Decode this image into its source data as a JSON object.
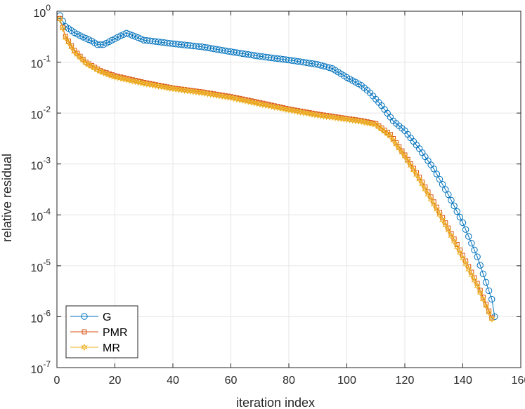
{
  "chart_data": {
    "type": "line",
    "title": "",
    "xlabel": "iteration index",
    "ylabel": "relative residual",
    "xlim": [
      0,
      160
    ],
    "ylim_log10": [
      -7,
      0
    ],
    "yscale": "log",
    "grid": true,
    "legend_position": "bottom-left",
    "x_ticks": [
      0,
      20,
      40,
      60,
      80,
      100,
      120,
      140,
      160
    ],
    "x_tick_labels": [
      "0",
      "20",
      "40",
      "60",
      "80",
      "100",
      "120",
      "140",
      "160"
    ],
    "y_tick_exponents": [
      0,
      -1,
      -2,
      -3,
      -4,
      -5,
      -6,
      -7
    ],
    "y_tick_base": "10",
    "y_tick_exps": [
      "0",
      "-1",
      "-2",
      "-3",
      "-4",
      "-5",
      "-6",
      "-7"
    ],
    "series": [
      {
        "name": "G",
        "color": "#0072BD",
        "marker": "circle",
        "n": 151,
        "keypoints": [
          [
            1,
            0.82
          ],
          [
            3,
            0.5
          ],
          [
            6,
            0.38
          ],
          [
            9,
            0.31
          ],
          [
            12,
            0.26
          ],
          [
            14,
            0.22
          ],
          [
            16,
            0.22
          ],
          [
            19,
            0.27
          ],
          [
            22,
            0.33
          ],
          [
            24,
            0.37
          ],
          [
            27,
            0.32
          ],
          [
            30,
            0.27
          ],
          [
            35,
            0.25
          ],
          [
            40,
            0.23
          ],
          [
            50,
            0.2
          ],
          [
            60,
            0.16
          ],
          [
            70,
            0.13
          ],
          [
            80,
            0.11
          ],
          [
            90,
            0.09
          ],
          [
            95,
            0.075
          ],
          [
            100,
            0.05
          ],
          [
            105,
            0.035
          ],
          [
            108,
            0.025
          ],
          [
            112,
            0.014
          ],
          [
            116,
            0.007
          ],
          [
            120,
            0.0045
          ],
          [
            125,
            0.002
          ],
          [
            130,
            0.0008
          ],
          [
            135,
            0.00025
          ],
          [
            140,
            7e-05
          ],
          [
            145,
            1.5e-05
          ],
          [
            150,
            2.2e-06
          ],
          [
            151,
            1e-06
          ]
        ]
      },
      {
        "name": "PMR",
        "color": "#D95319",
        "marker": "square",
        "n": 150,
        "keypoints": [
          [
            1,
            0.72
          ],
          [
            3,
            0.32
          ],
          [
            6,
            0.17
          ],
          [
            10,
            0.1
          ],
          [
            15,
            0.068
          ],
          [
            20,
            0.054
          ],
          [
            30,
            0.04
          ],
          [
            40,
            0.031
          ],
          [
            50,
            0.026
          ],
          [
            60,
            0.021
          ],
          [
            70,
            0.016
          ],
          [
            80,
            0.012
          ],
          [
            90,
            0.0095
          ],
          [
            100,
            0.0078
          ],
          [
            105,
            0.0071
          ],
          [
            110,
            0.0062
          ],
          [
            115,
            0.0038
          ],
          [
            120,
            0.0015
          ],
          [
            125,
            0.00055
          ],
          [
            130,
            0.00018
          ],
          [
            135,
            5.5e-05
          ],
          [
            140,
            1.6e-05
          ],
          [
            145,
            4.5e-06
          ],
          [
            150,
            9.5e-07
          ]
        ]
      },
      {
        "name": "MR",
        "color": "#EDB120",
        "marker": "hexagram",
        "n": 150,
        "keypoints": [
          [
            1,
            0.7
          ],
          [
            3,
            0.3
          ],
          [
            6,
            0.16
          ],
          [
            10,
            0.095
          ],
          [
            15,
            0.065
          ],
          [
            20,
            0.051
          ],
          [
            30,
            0.038
          ],
          [
            40,
            0.03
          ],
          [
            50,
            0.025
          ],
          [
            60,
            0.02
          ],
          [
            70,
            0.015
          ],
          [
            80,
            0.0115
          ],
          [
            90,
            0.009
          ],
          [
            100,
            0.0075
          ],
          [
            105,
            0.0068
          ],
          [
            110,
            0.0059
          ],
          [
            115,
            0.0035
          ],
          [
            120,
            0.0014
          ],
          [
            125,
            0.0005
          ],
          [
            130,
            0.00016
          ],
          [
            135,
            5e-05
          ],
          [
            140,
            1.4e-05
          ],
          [
            145,
            4e-06
          ],
          [
            150,
            9e-07
          ]
        ]
      }
    ]
  }
}
